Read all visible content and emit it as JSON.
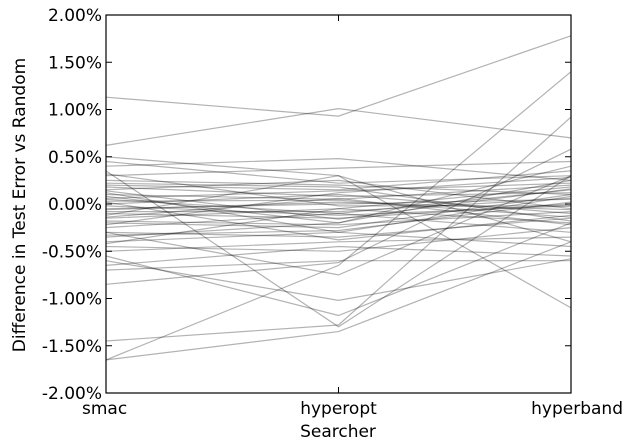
{
  "chart_data": {
    "type": "line",
    "xlabel": "Searcher",
    "ylabel": "Difference in Test Error vs Random",
    "categories": [
      "smac",
      "hyperopt",
      "hyperband"
    ],
    "ylim": [
      -2.0,
      2.0
    ],
    "yticks": [
      -2.0,
      -1.5,
      -1.0,
      -0.5,
      0.0,
      0.5,
      1.0,
      1.5,
      2.0
    ],
    "ytick_labels": [
      "-2.00%",
      "-1.50%",
      "-1.00%",
      "-0.50%",
      "0.00%",
      "0.50%",
      "1.00%",
      "1.50%",
      "2.00%"
    ],
    "grid": false,
    "legend": "none",
    "line_color": "#000000",
    "series": [
      {
        "values": [
          1.13,
          0.93,
          1.78
        ]
      },
      {
        "values": [
          -1.65,
          -0.65,
          1.4
        ]
      },
      {
        "values": [
          -1.45,
          -1.28,
          0.92
        ]
      },
      {
        "values": [
          0.62,
          1.01,
          0.7
        ]
      },
      {
        "values": [
          0.5,
          0.3,
          -1.1
        ]
      },
      {
        "values": [
          -0.85,
          -0.62,
          0.58
        ]
      },
      {
        "values": [
          -1.65,
          -1.35,
          -0.4
        ]
      },
      {
        "values": [
          -0.55,
          -1.18,
          -0.2
        ]
      },
      {
        "values": [
          -0.6,
          -1.02,
          -0.58
        ]
      },
      {
        "values": [
          0.35,
          -1.3,
          0.3
        ]
      },
      {
        "values": [
          0.4,
          0.48,
          0.25
        ]
      },
      {
        "values": [
          0.3,
          0.38,
          0.45
        ]
      },
      {
        "values": [
          0.25,
          0.2,
          0.1
        ]
      },
      {
        "values": [
          0.2,
          0.15,
          0.35
        ]
      },
      {
        "values": [
          0.15,
          0.25,
          -0.05
        ]
      },
      {
        "values": [
          0.1,
          0.05,
          0.2
        ]
      },
      {
        "values": [
          0.05,
          -0.1,
          0.15
        ]
      },
      {
        "values": [
          0.0,
          0.1,
          -0.1
        ]
      },
      {
        "values": [
          -0.05,
          0.0,
          0.05
        ]
      },
      {
        "values": [
          -0.1,
          -0.15,
          0.0
        ]
      },
      {
        "values": [
          -0.15,
          -0.05,
          -0.2
        ]
      },
      {
        "values": [
          -0.2,
          -0.25,
          0.1
        ]
      },
      {
        "values": [
          -0.25,
          -0.1,
          -0.3
        ]
      },
      {
        "values": [
          -0.3,
          -0.35,
          -0.15
        ]
      },
      {
        "values": [
          -0.35,
          -0.2,
          0.25
        ]
      },
      {
        "values": [
          -0.4,
          -0.3,
          -0.45
        ]
      },
      {
        "values": [
          -0.45,
          -0.5,
          -0.25
        ]
      },
      {
        "values": [
          -0.5,
          -0.4,
          -0.35
        ]
      },
      {
        "values": [
          -0.65,
          -0.45,
          -0.55
        ]
      },
      {
        "values": [
          -0.7,
          -0.6,
          -0.6
        ]
      },
      {
        "values": [
          -0.3,
          -0.75,
          0.3
        ]
      },
      {
        "values": [
          0.45,
          0.22,
          0.3
        ]
      },
      {
        "values": [
          0.08,
          -0.2,
          0.4
        ]
      },
      {
        "values": [
          -0.12,
          0.3,
          -0.4
        ]
      },
      {
        "values": [
          0.32,
          -0.02,
          -0.02
        ]
      },
      {
        "values": [
          -0.42,
          -0.05,
          0.18
        ]
      },
      {
        "values": [
          0.12,
          -0.3,
          0.08
        ]
      },
      {
        "values": [
          -0.22,
          0.12,
          0.28
        ]
      },
      {
        "values": [
          0.02,
          -0.38,
          -0.12
        ]
      },
      {
        "values": [
          -0.06,
          0.02,
          -0.06
        ]
      },
      {
        "values": [
          0.22,
          0.18,
          -0.18
        ]
      },
      {
        "values": [
          -0.33,
          -0.28,
          0.02
        ]
      },
      {
        "values": [
          0.18,
          0.08,
          0.12
        ]
      },
      {
        "values": [
          -0.18,
          -0.22,
          -0.08
        ]
      },
      {
        "values": [
          0.06,
          0.14,
          0.22
        ]
      },
      {
        "values": [
          -0.02,
          -0.12,
          -0.02
        ]
      },
      {
        "values": [
          -0.08,
          -0.08,
          0.06
        ]
      },
      {
        "values": [
          0.03,
          0.04,
          -0.14
        ]
      },
      {
        "values": [
          -0.14,
          0.06,
          -0.22
        ]
      },
      {
        "values": [
          0.14,
          -0.16,
          0.16
        ]
      }
    ]
  }
}
